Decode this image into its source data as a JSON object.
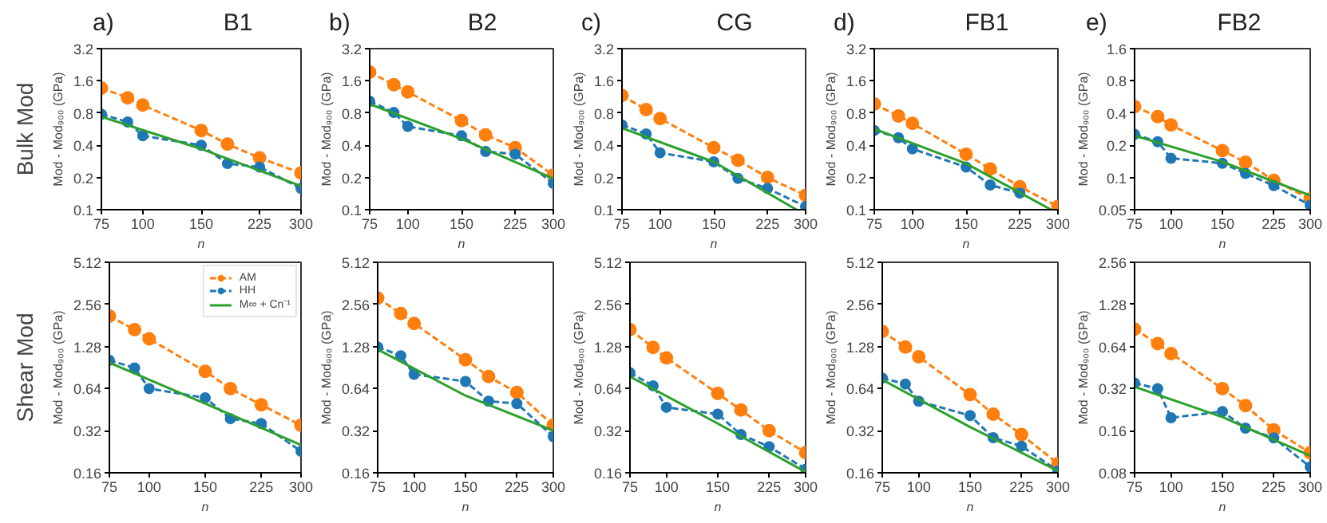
{
  "chart_data": [
    {
      "type": "line",
      "title": "B1",
      "annotations": [
        "a)",
        "Bulk Mod"
      ],
      "xlabel": "n",
      "ylabel": "Mod - Mod₉₀₀ (GPa)",
      "log": "xy",
      "grid": false,
      "xlim": [
        75,
        300
      ],
      "xticks": [
        75,
        100,
        150,
        225,
        300
      ],
      "ylim": [
        0.1,
        3.2
      ],
      "yticks": [
        0.1,
        0.2,
        0.4,
        0.8,
        1.6,
        3.2
      ],
      "x": [
        75,
        90,
        100,
        150,
        180,
        225,
        300
      ],
      "series": [
        {
          "color": "#ff7f0e",
          "marker": "circle",
          "line_style": "dashed",
          "values": [
            1.37,
            1.11,
            0.95,
            0.55,
            0.41,
            0.305,
            0.22
          ]
        },
        {
          "color": "#1f77b4",
          "marker": "circle",
          "line_style": "dashed",
          "values": [
            0.78,
            0.66,
            0.49,
            0.4,
            0.27,
            0.25,
            0.158
          ]
        },
        {
          "color": "#2ca02c",
          "marker": "none",
          "line_style": "solid",
          "x": [
            75,
            150,
            300
          ],
          "values": [
            0.74,
            0.37,
            0.166
          ]
        }
      ]
    },
    {
      "type": "line",
      "title": "B2",
      "annotations": [
        "b)"
      ],
      "xlabel": "n",
      "ylabel": "Mod - Mod₉₀₀ (GPa)",
      "log": "xy",
      "grid": false,
      "xlim": [
        75,
        300
      ],
      "xticks": [
        75,
        100,
        150,
        225,
        300
      ],
      "ylim": [
        0.1,
        3.2
      ],
      "yticks": [
        0.1,
        0.2,
        0.4,
        0.8,
        1.6,
        3.2
      ],
      "x": [
        75,
        90,
        100,
        150,
        180,
        225,
        300
      ],
      "series": [
        {
          "color": "#ff7f0e",
          "marker": "circle",
          "line_style": "dashed",
          "values": [
            1.93,
            1.47,
            1.26,
            0.68,
            0.5,
            0.38,
            0.21
          ]
        },
        {
          "color": "#1f77b4",
          "marker": "circle",
          "line_style": "dashed",
          "values": [
            1.03,
            0.81,
            0.6,
            0.49,
            0.35,
            0.33,
            0.176
          ]
        },
        {
          "color": "#2ca02c",
          "marker": "none",
          "line_style": "solid",
          "x": [
            75,
            150,
            300
          ],
          "values": [
            0.97,
            0.46,
            0.196
          ]
        }
      ]
    },
    {
      "type": "line",
      "title": "CG",
      "annotations": [
        "c)"
      ],
      "xlabel": "n",
      "ylabel": "Mod - Mod₉₀₀ (GPa)",
      "log": "xy",
      "grid": false,
      "xlim": [
        75,
        300
      ],
      "xticks": [
        75,
        100,
        150,
        225,
        300
      ],
      "ylim": [
        0.1,
        3.2
      ],
      "yticks": [
        0.1,
        0.2,
        0.4,
        0.8,
        1.6,
        3.2
      ],
      "x": [
        75,
        90,
        100,
        150,
        180,
        225,
        300
      ],
      "series": [
        {
          "color": "#ff7f0e",
          "marker": "circle",
          "line_style": "dashed",
          "values": [
            1.17,
            0.86,
            0.71,
            0.38,
            0.29,
            0.2,
            0.136
          ]
        },
        {
          "color": "#1f77b4",
          "marker": "circle",
          "line_style": "dashed",
          "values": [
            0.62,
            0.51,
            0.34,
            0.28,
            0.196,
            0.158,
            0.107
          ]
        },
        {
          "color": "#2ca02c",
          "marker": "none",
          "line_style": "solid",
          "x": [
            75,
            150,
            280
          ],
          "values": [
            0.58,
            0.28,
            0.1
          ]
        }
      ]
    },
    {
      "type": "line",
      "title": "FB1",
      "annotations": [
        "d)"
      ],
      "xlabel": "n",
      "ylabel": "Mod - Mod₉₀₀ (GPa)",
      "log": "xy",
      "grid": false,
      "xlim": [
        75,
        300
      ],
      "xticks": [
        75,
        100,
        150,
        225,
        300
      ],
      "ylim": [
        0.1,
        3.2
      ],
      "yticks": [
        0.1,
        0.2,
        0.4,
        0.8,
        1.6,
        3.2
      ],
      "x": [
        75,
        90,
        100,
        150,
        180,
        225,
        300
      ],
      "series": [
        {
          "color": "#ff7f0e",
          "marker": "circle",
          "line_style": "dashed",
          "values": [
            0.97,
            0.75,
            0.64,
            0.33,
            0.24,
            0.164,
            0.107
          ]
        },
        {
          "color": "#1f77b4",
          "marker": "circle",
          "line_style": "dashed",
          "values": [
            0.55,
            0.47,
            0.37,
            0.25,
            0.17,
            0.143,
            null
          ]
        },
        {
          "color": "#2ca02c",
          "marker": "none",
          "line_style": "solid",
          "x": [
            75,
            150,
            285
          ],
          "values": [
            0.57,
            0.27,
            0.1
          ]
        }
      ]
    },
    {
      "type": "line",
      "title": "FB2",
      "annotations": [
        "e)"
      ],
      "xlabel": "n",
      "ylabel": "Mod - Mod₉₀₀ (GPa)",
      "log": "xy",
      "grid": false,
      "xlim": [
        75,
        300
      ],
      "xticks": [
        75,
        100,
        150,
        225,
        300
      ],
      "ylim": [
        0.05,
        1.6
      ],
      "yticks": [
        0.05,
        0.1,
        0.2,
        0.4,
        0.8,
        1.6
      ],
      "x": [
        75,
        90,
        100,
        150,
        180,
        225,
        300
      ],
      "series": [
        {
          "color": "#ff7f0e",
          "marker": "circle",
          "line_style": "dashed",
          "values": [
            0.46,
            0.37,
            0.31,
            0.178,
            0.139,
            0.094,
            0.063
          ]
        },
        {
          "color": "#1f77b4",
          "marker": "circle",
          "line_style": "dashed",
          "values": [
            0.253,
            0.216,
            0.151,
            0.136,
            0.109,
            0.084,
            0.055
          ]
        },
        {
          "color": "#2ca02c",
          "marker": "none",
          "line_style": "solid",
          "x": [
            75,
            150,
            300
          ],
          "values": [
            0.246,
            0.14,
            0.068
          ]
        }
      ]
    },
    {
      "type": "line",
      "annotations": [
        "Shear Mod"
      ],
      "legend": "top right",
      "xlabel": "n",
      "ylabel": "Mod - Mod₉₀₀ (GPa)",
      "log": "xy",
      "grid": false,
      "xlim": [
        75,
        300
      ],
      "xticks": [
        75,
        100,
        150,
        225,
        300
      ],
      "ylim": [
        0.16,
        5.12
      ],
      "yticks": [
        0.16,
        0.32,
        0.64,
        1.28,
        2.56,
        5.12
      ],
      "x": [
        75,
        90,
        100,
        150,
        180,
        225,
        300
      ],
      "series": [
        {
          "name": "AM",
          "color": "#ff7f0e",
          "marker": "circle",
          "line_style": "dashed",
          "values": [
            2.11,
            1.69,
            1.45,
            0.85,
            0.64,
            0.49,
            0.35
          ]
        },
        {
          "name": "HH",
          "color": "#1f77b4",
          "marker": "circle",
          "line_style": "dashed",
          "values": [
            1.02,
            0.9,
            0.64,
            0.55,
            0.39,
            0.36,
            0.228
          ]
        },
        {
          "name": "M∞ + Cn⁻¹",
          "color": "#2ca02c",
          "marker": "none",
          "line_style": "solid",
          "x": [
            75,
            150,
            300
          ],
          "values": [
            0.98,
            0.5,
            0.253
          ]
        }
      ]
    },
    {
      "type": "line",
      "xlabel": "n",
      "ylabel": "Mod - Mod₉₀₀ (GPa)",
      "log": "xy",
      "grid": false,
      "xlim": [
        75,
        300
      ],
      "xticks": [
        75,
        100,
        150,
        225,
        300
      ],
      "ylim": [
        0.16,
        5.12
      ],
      "yticks": [
        0.16,
        0.32,
        0.64,
        1.28,
        2.56,
        5.12
      ],
      "x": [
        75,
        90,
        100,
        150,
        180,
        225,
        300
      ],
      "series": [
        {
          "color": "#ff7f0e",
          "marker": "circle",
          "line_style": "dashed",
          "values": [
            2.84,
            2.2,
            1.87,
            1.03,
            0.78,
            0.6,
            0.35
          ]
        },
        {
          "color": "#1f77b4",
          "marker": "circle",
          "line_style": "dashed",
          "values": [
            1.27,
            1.1,
            0.81,
            0.72,
            0.52,
            0.5,
            0.29
          ]
        },
        {
          "color": "#2ca02c",
          "marker": "none",
          "line_style": "solid",
          "x": [
            75,
            150,
            300
          ],
          "values": [
            1.22,
            0.57,
            0.32
          ]
        }
      ]
    },
    {
      "type": "line",
      "xlabel": "n",
      "ylabel": "Mod - Mod₉₀₀ (GPa)",
      "log": "xy",
      "grid": false,
      "xlim": [
        75,
        300
      ],
      "xticks": [
        75,
        100,
        150,
        225,
        300
      ],
      "ylim": [
        0.16,
        5.12
      ],
      "yticks": [
        0.16,
        0.32,
        0.64,
        1.28,
        2.56,
        5.12
      ],
      "x": [
        75,
        90,
        100,
        150,
        180,
        225,
        300
      ],
      "series": [
        {
          "color": "#ff7f0e",
          "marker": "circle",
          "line_style": "dashed",
          "values": [
            1.69,
            1.26,
            1.06,
            0.59,
            0.45,
            0.32,
            0.223
          ]
        },
        {
          "color": "#1f77b4",
          "marker": "circle",
          "line_style": "dashed",
          "values": [
            0.83,
            0.67,
            0.47,
            0.42,
            0.3,
            0.246,
            0.17
          ]
        },
        {
          "color": "#2ca02c",
          "marker": "none",
          "line_style": "solid",
          "x": [
            75,
            150,
            300
          ],
          "values": [
            0.78,
            0.36,
            0.162
          ]
        }
      ]
    },
    {
      "type": "line",
      "xlabel": "n",
      "ylabel": "Mod - Mod₉₀₀ (GPa)",
      "log": "xy",
      "grid": false,
      "xlim": [
        75,
        300
      ],
      "xticks": [
        75,
        100,
        150,
        225,
        300
      ],
      "ylim": [
        0.16,
        5.12
      ],
      "yticks": [
        0.16,
        0.32,
        0.64,
        1.28,
        2.56,
        5.12
      ],
      "x": [
        75,
        90,
        100,
        150,
        180,
        225,
        300
      ],
      "series": [
        {
          "color": "#ff7f0e",
          "marker": "circle",
          "line_style": "dashed",
          "values": [
            1.64,
            1.27,
            1.08,
            0.58,
            0.42,
            0.3,
            0.186
          ]
        },
        {
          "color": "#1f77b4",
          "marker": "circle",
          "line_style": "dashed",
          "values": [
            0.76,
            0.69,
            0.52,
            0.41,
            0.285,
            0.248,
            0.165
          ]
        },
        {
          "color": "#2ca02c",
          "marker": "none",
          "line_style": "solid",
          "x": [
            75,
            150,
            300
          ],
          "values": [
            0.74,
            0.34,
            0.165
          ]
        }
      ]
    },
    {
      "type": "line",
      "xlabel": "n",
      "ylabel": "Mod - Mod₉₀₀ (GPa)",
      "log": "xy",
      "grid": false,
      "xlim": [
        75,
        300
      ],
      "xticks": [
        75,
        100,
        150,
        225,
        300
      ],
      "ylim": [
        0.08,
        2.56
      ],
      "yticks": [
        0.08,
        0.16,
        0.32,
        0.64,
        1.28,
        2.56
      ],
      "x": [
        75,
        90,
        100,
        150,
        180,
        225,
        300
      ],
      "series": [
        {
          "color": "#ff7f0e",
          "marker": "circle",
          "line_style": "dashed",
          "values": [
            0.85,
            0.67,
            0.57,
            0.32,
            0.242,
            0.162,
            0.111
          ]
        },
        {
          "color": "#1f77b4",
          "marker": "circle",
          "line_style": "dashed",
          "values": [
            0.35,
            0.32,
            0.198,
            0.219,
            0.167,
            0.142,
            0.088
          ]
        },
        {
          "color": "#2ca02c",
          "marker": "none",
          "line_style": "solid",
          "x": [
            75,
            150,
            300
          ],
          "values": [
            0.33,
            0.2,
            0.106
          ]
        }
      ]
    }
  ]
}
